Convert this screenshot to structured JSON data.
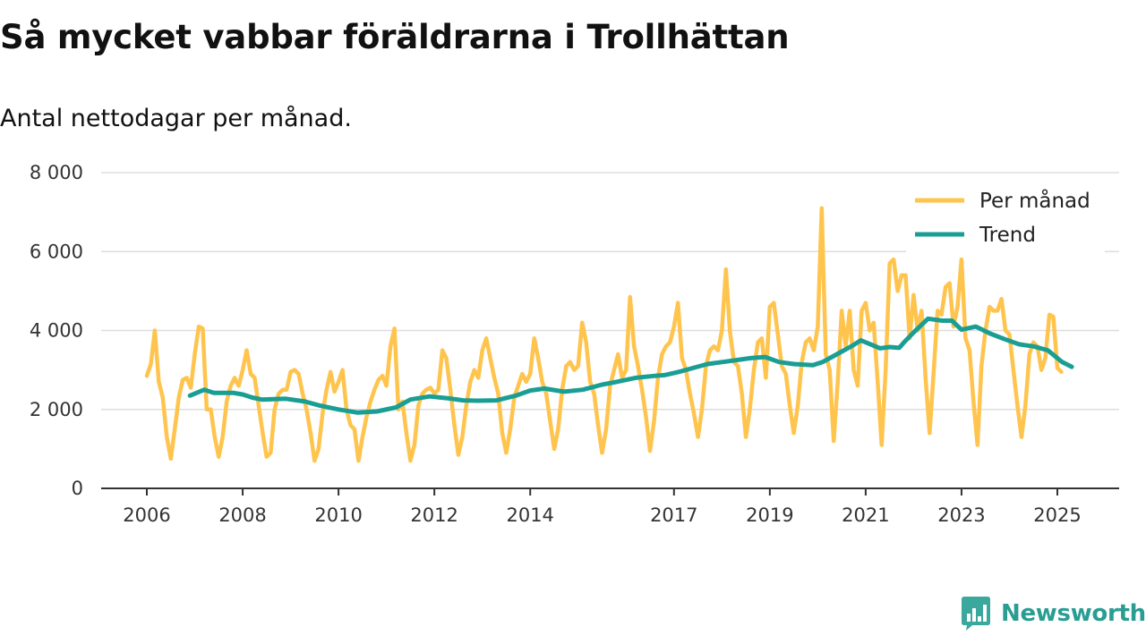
{
  "header": {
    "title": "Så mycket vabbar föräldrarna i Trollhättan",
    "subtitle": "Antal nettodagar per månad."
  },
  "brand": {
    "name": "Newsworthy",
    "icon": "newsworthy-logo-icon",
    "color": "#2a9d93"
  },
  "colors": {
    "monthly": "#ffc44d",
    "trend": "#1a9e94",
    "grid": "#dddddd",
    "axis": "#333333"
  },
  "chart_data": {
    "type": "line",
    "title": "Så mycket vabbar föräldrarna i Trollhättan",
    "subtitle": "Antal nettodagar per månad.",
    "xlabel": "",
    "ylabel": "",
    "xlim": [
      2006,
      2026.3
    ],
    "ylim": [
      0,
      8000
    ],
    "x_ticks": [
      2006,
      2008,
      2010,
      2012,
      2014,
      2017,
      2019,
      2021,
      2023,
      2025
    ],
    "x_tick_labels": [
      "2006",
      "2008",
      "2010",
      "2012",
      "2014",
      "2017",
      "2019",
      "2021",
      "2023",
      "2025"
    ],
    "y_ticks": [
      0,
      2000,
      4000,
      6000,
      8000
    ],
    "y_tick_labels": [
      "0",
      "2 000",
      "4 000",
      "6 000",
      "8 000"
    ],
    "grid": true,
    "legend_position": "top-right",
    "series": [
      {
        "name": "Per månad",
        "color": "#ffc44d",
        "x_start": 2006.0,
        "step": 0.0833333,
        "values": [
          2850,
          3150,
          4000,
          2700,
          2300,
          1300,
          750,
          1500,
          2300,
          2750,
          2800,
          2550,
          3400,
          4100,
          4050,
          2000,
          2000,
          1300,
          800,
          1300,
          2200,
          2600,
          2800,
          2600,
          3000,
          3500,
          2900,
          2800,
          2100,
          1400,
          800,
          900,
          2000,
          2400,
          2500,
          2500,
          2950,
          3000,
          2900,
          2400,
          2000,
          1400,
          700,
          1000,
          1900,
          2500,
          2950,
          2450,
          2700,
          3000,
          2000,
          1600,
          1500,
          700,
          1300,
          1800,
          2200,
          2500,
          2750,
          2850,
          2600,
          3600,
          4050,
          2000,
          2200,
          1400,
          700,
          1100,
          2100,
          2400,
          2500,
          2550,
          2400,
          2500,
          3500,
          3300,
          2500,
          1600,
          850,
          1300,
          2100,
          2700,
          3000,
          2800,
          3500,
          3800,
          3300,
          2800,
          2400,
          1400,
          900,
          1500,
          2300,
          2600,
          2900,
          2700,
          2900,
          3800,
          3300,
          2700,
          2400,
          1700,
          1000,
          1500,
          2500,
          3100,
          3200,
          3000,
          3100,
          4200,
          3700,
          2700,
          2400,
          1600,
          900,
          1500,
          2600,
          3000,
          3400,
          2800,
          3000,
          4850,
          3600,
          3100,
          2500,
          1800,
          950,
          1700,
          2800,
          3400,
          3600,
          3700,
          4100,
          4700,
          3300,
          3000,
          2400,
          1900,
          1300,
          2000,
          3100,
          3500,
          3600,
          3500,
          4000,
          5550,
          4000,
          3200,
          3100,
          2400,
          1300,
          2000,
          3000,
          3700,
          3800,
          2800,
          4600,
          4700,
          3900,
          3100,
          2900,
          2100,
          1400,
          2100,
          3200,
          3700,
          3800,
          3500,
          4100,
          7100,
          3400,
          3000,
          1200,
          2700,
          4500,
          3600,
          4500,
          3000,
          2600,
          4500,
          4700,
          4000,
          4200,
          2700,
          1100,
          3000,
          5700,
          5800,
          5000,
          5400,
          5400,
          3800,
          4900,
          4000,
          4500,
          2800,
          1400,
          2900,
          4500,
          4400,
          5100,
          5200,
          4100,
          4600,
          5800,
          3800,
          3500,
          2200,
          1100,
          3100,
          4000,
          4600,
          4500,
          4500,
          4800,
          4000,
          3900,
          3000,
          2100,
          1300,
          2100,
          3400,
          3700,
          3600,
          3000,
          3300,
          4400,
          4350,
          3050,
          2950
        ]
      },
      {
        "name": "Trend",
        "color": "#1a9e94",
        "x": [
          2006.9,
          2007.2,
          2007.4,
          2007.8,
          2008.0,
          2008.2,
          2008.4,
          2008.9,
          2009.3,
          2009.6,
          2010.0,
          2010.4,
          2010.8,
          2011.2,
          2011.5,
          2011.9,
          2012.3,
          2012.6,
          2012.9,
          2013.3,
          2013.7,
          2014.0,
          2014.3,
          2014.7,
          2015.1,
          2015.5,
          2015.8,
          2016.2,
          2016.6,
          2016.8,
          2017.1,
          2017.4,
          2017.7,
          2018.0,
          2018.3,
          2018.6,
          2018.9,
          2019.2,
          2019.5,
          2019.9,
          2020.1,
          2020.4,
          2020.7,
          2020.9,
          2021.1,
          2021.3,
          2021.5,
          2021.7,
          2021.8,
          2022.0,
          2022.3,
          2022.6,
          2022.8,
          2023.0,
          2023.3,
          2023.6,
          2023.9,
          2024.2,
          2024.5,
          2024.8,
          2025.1,
          2025.3
        ],
        "y": [
          2350,
          2500,
          2420,
          2420,
          2380,
          2300,
          2250,
          2270,
          2200,
          2100,
          2000,
          1920,
          1950,
          2050,
          2250,
          2330,
          2280,
          2230,
          2220,
          2230,
          2350,
          2480,
          2530,
          2450,
          2500,
          2630,
          2700,
          2800,
          2850,
          2870,
          2950,
          3050,
          3150,
          3200,
          3250,
          3300,
          3330,
          3200,
          3150,
          3120,
          3200,
          3400,
          3600,
          3750,
          3650,
          3550,
          3580,
          3560,
          3700,
          3950,
          4300,
          4250,
          4250,
          4020,
          4100,
          3920,
          3780,
          3650,
          3600,
          3500,
          3200,
          3080
        ]
      }
    ]
  }
}
